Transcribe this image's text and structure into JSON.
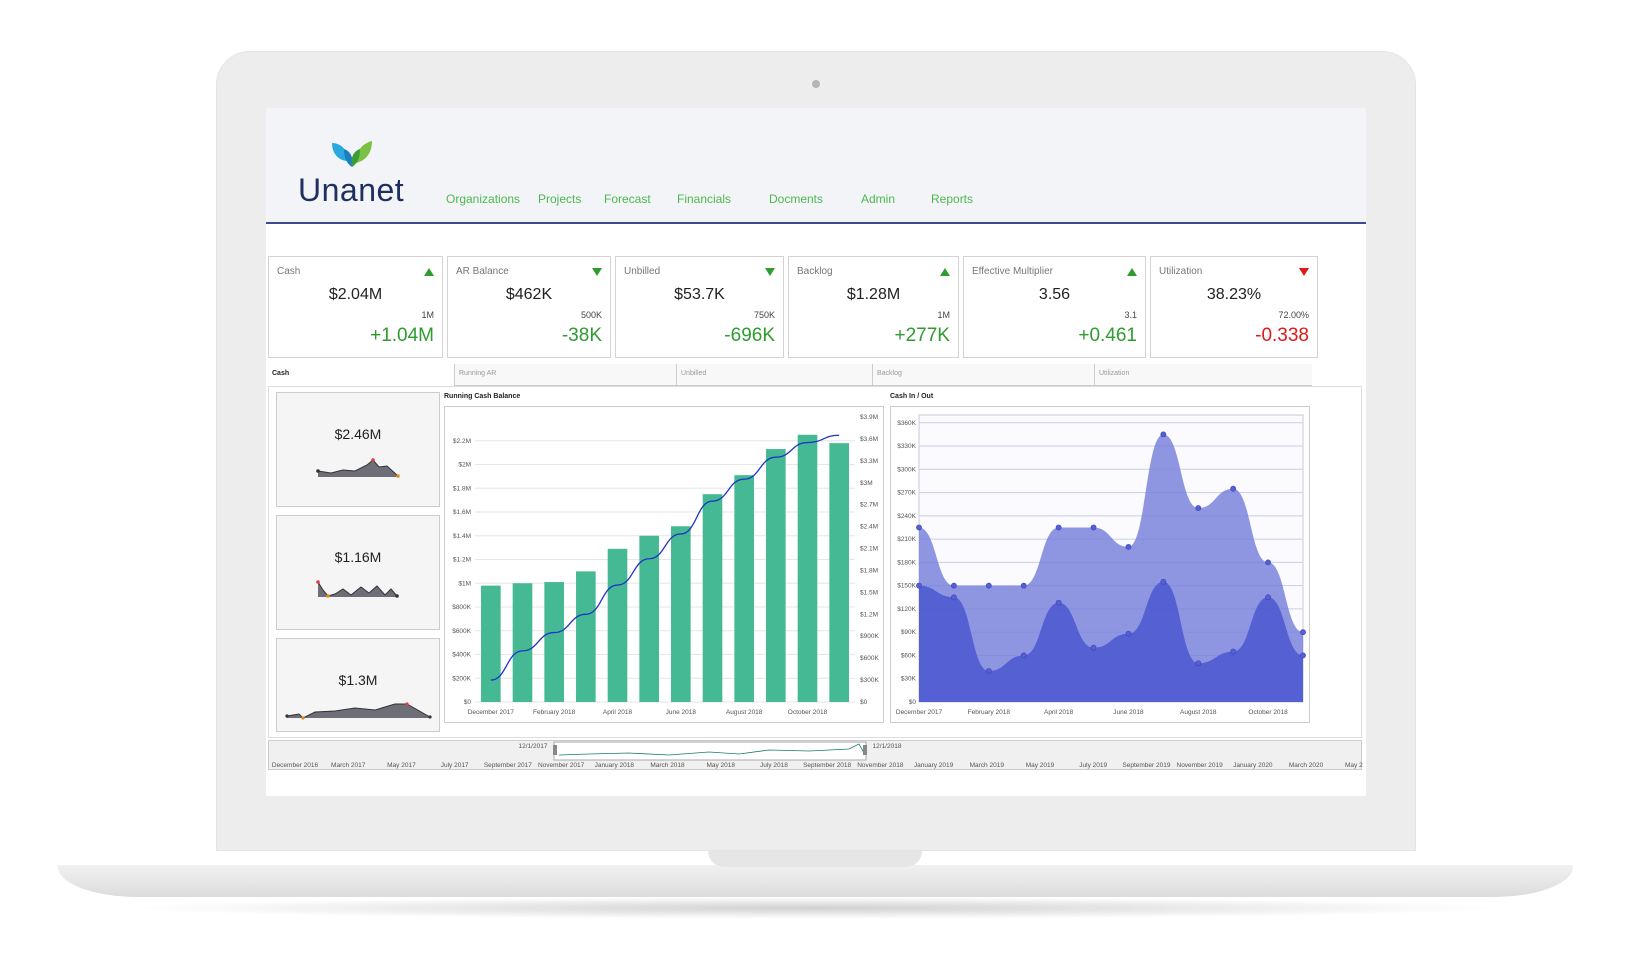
{
  "app": {
    "logo_text": "Unanet"
  },
  "nav": [
    {
      "label": "Organizations"
    },
    {
      "label": "Projects"
    },
    {
      "label": "Forecast"
    },
    {
      "label": "Financials"
    },
    {
      "label": "Docments"
    },
    {
      "label": "Admin"
    },
    {
      "label": "Reports"
    }
  ],
  "kpis": [
    {
      "label": "Cash",
      "value": "$2.04M",
      "target": "1M",
      "delta": "+1.04M",
      "trend": "up",
      "status": "good"
    },
    {
      "label": "AR Balance",
      "value": "$462K",
      "target": "500K",
      "delta": "-38K",
      "trend": "down",
      "status": "good"
    },
    {
      "label": "Unbilled",
      "value": "$53.7K",
      "target": "750K",
      "delta": "-696K",
      "trend": "down",
      "status": "good"
    },
    {
      "label": "Backlog",
      "value": "$1.28M",
      "target": "1M",
      "delta": "+277K",
      "trend": "up",
      "status": "good"
    },
    {
      "label": "Effective Multiplier",
      "value": "3.56",
      "target": "3.1",
      "delta": "+0.461",
      "trend": "up",
      "status": "good"
    },
    {
      "label": "Utilization",
      "value": "38.23%",
      "target": "72.00%",
      "delta": "-0.338",
      "trend": "down",
      "status": "bad"
    }
  ],
  "tabs": [
    {
      "label": "Cash"
    },
    {
      "label": "Running AR"
    },
    {
      "label": "Unbilled"
    },
    {
      "label": "Backlog"
    },
    {
      "label": "Utilization"
    }
  ],
  "mini_cards": [
    {
      "value": "$2.46M"
    },
    {
      "value": "$1.16M"
    },
    {
      "value": "$1.3M"
    }
  ],
  "colors": {
    "bar": "#45b994",
    "line": "#1f35c4",
    "area_back": "#7a83dc",
    "area_front": "#4f5bd0",
    "nav": "#4db84d",
    "header_line": "#3c4a8e"
  },
  "chart_data": [
    {
      "type": "bar",
      "title": "Running Cash Balance",
      "categories": [
        "December 2017",
        "January 2018",
        "February 2018",
        "March 2018",
        "April 2018",
        "May 2018",
        "June 2018",
        "July 2018",
        "August 2018",
        "September 2018",
        "October 2018",
        "November 2018"
      ],
      "x_tick_labels": [
        "December 2017",
        "February 2018",
        "April 2018",
        "June 2018",
        "August 2018",
        "October 2018"
      ],
      "series": [
        {
          "values": [
            0.98,
            1.0,
            1.01,
            1.1,
            1.29,
            1.4,
            1.48,
            1.75,
            1.91,
            2.13,
            2.25,
            2.18
          ]
        },
        {
          "type": "line",
          "axis": "right",
          "values": [
            0.3,
            0.7,
            0.95,
            1.2,
            1.6,
            1.96,
            2.3,
            2.75,
            3.05,
            3.35,
            3.55,
            3.65
          ]
        }
      ],
      "y_ticks": [
        "$0",
        "$200K",
        "$400K",
        "$600K",
        "$800K",
        "$1M",
        "$1.2M",
        "$1.4M",
        "$1.6M",
        "$1.8M",
        "$2M",
        "$2.2M"
      ],
      "ylim": [
        0,
        2.4
      ],
      "y2_ticks": [
        "$0",
        "$300K",
        "$600K",
        "$900K",
        "$1.2M",
        "$1.5M",
        "$1.8M",
        "$2.1M",
        "$2.4M",
        "$2.7M",
        "$3M",
        "$3.3M",
        "$3.6M",
        "$3.9M"
      ],
      "y2lim": [
        0,
        3.9
      ],
      "grid": true
    },
    {
      "type": "area",
      "title": "Cash In / Out",
      "categories": [
        "December 2017",
        "January 2018",
        "February 2018",
        "March 2018",
        "April 2018",
        "May 2018",
        "June 2018",
        "July 2018",
        "August 2018",
        "September 2018",
        "October 2018",
        "November 2018"
      ],
      "x_tick_labels": [
        "December 2017",
        "February 2018",
        "April 2018",
        "June 2018",
        "August 2018",
        "October 2018"
      ],
      "series": [
        {
          "values": [
            225,
            150,
            150,
            150,
            225,
            225,
            200,
            345,
            250,
            275,
            180,
            90
          ]
        },
        {
          "values": [
            150,
            135,
            40,
            60,
            128,
            70,
            88,
            155,
            50,
            65,
            135,
            60
          ]
        }
      ],
      "y_ticks": [
        "$0",
        "$30K",
        "$60K",
        "$90K",
        "$120K",
        "$150K",
        "$180K",
        "$210K",
        "$240K",
        "$270K",
        "$300K",
        "$330K",
        "$360K"
      ],
      "ylim": [
        0,
        370
      ],
      "grid": true
    }
  ],
  "timeline": {
    "labels": [
      "December 2016",
      "March 2017",
      "May 2017",
      "July 2017",
      "September 2017",
      "November 2017",
      "January 2018",
      "March 2018",
      "May 2018",
      "July 2018",
      "September 2018",
      "November 2018",
      "January 2019",
      "March 2019",
      "May 2019",
      "July 2019",
      "September 2019",
      "November 2019",
      "January 2020",
      "March 2020",
      "May 2020"
    ],
    "range_start": "12/1/2017",
    "range_end": "12/1/2018"
  }
}
